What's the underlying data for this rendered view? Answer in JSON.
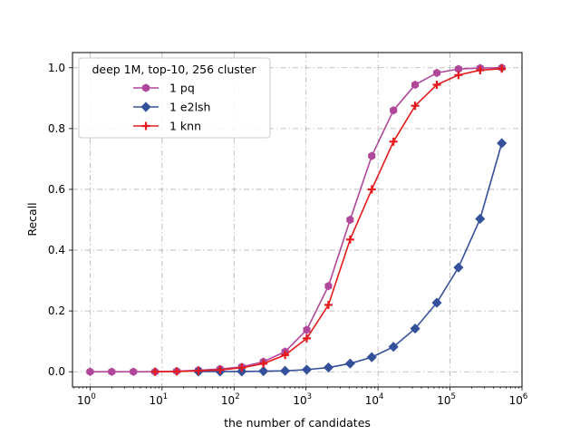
{
  "chart_data": {
    "type": "line",
    "xlabel": "the number of candidates",
    "ylabel": "Recall",
    "xscale": "log",
    "x_ticks": [
      {
        "value": 1,
        "base": "10",
        "exp": "0"
      },
      {
        "value": 10,
        "base": "10",
        "exp": "1"
      },
      {
        "value": 100,
        "base": "10",
        "exp": "2"
      },
      {
        "value": 1000,
        "base": "10",
        "exp": "3"
      },
      {
        "value": 10000,
        "base": "10",
        "exp": "4"
      },
      {
        "value": 100000,
        "base": "10",
        "exp": "5"
      },
      {
        "value": 1000000,
        "base": "10",
        "exp": "6"
      }
    ],
    "y_ticks": [
      0.0,
      0.2,
      0.4,
      0.6,
      0.8,
      1.0
    ],
    "y_tick_labels": [
      "0.0",
      "0.2",
      "0.4",
      "0.6",
      "0.8",
      "1.0"
    ],
    "xlim": [
      0.57,
      1000000
    ],
    "ylim": [
      -0.05,
      1.05
    ],
    "grid": true,
    "legend_title": "deep 1M, top-10, 256 cluster",
    "legend_position": "top-left",
    "series": [
      {
        "name": "1 pq",
        "color": "#b0479a",
        "marker": "hexagon",
        "x": [
          1,
          2,
          4,
          8,
          16,
          32,
          64,
          128,
          256,
          512,
          1024,
          2048,
          4096,
          8192,
          16384,
          32768,
          65536,
          131072,
          262144,
          524288
        ],
        "y": [
          0.0,
          0.0,
          0.0,
          0.0,
          0.002,
          0.005,
          0.009,
          0.016,
          0.033,
          0.066,
          0.138,
          0.282,
          0.5,
          0.71,
          0.86,
          0.944,
          0.983,
          0.996,
          0.999,
          1.0
        ]
      },
      {
        "name": "1 e2lsh",
        "color": "#34509a",
        "marker": "diamond",
        "x": [
          32,
          64,
          128,
          256,
          512,
          1024,
          2048,
          4096,
          8192,
          16384,
          32768,
          65536,
          131072,
          262144,
          524288
        ],
        "y": [
          0.001,
          0.001,
          0.001,
          0.002,
          0.003,
          0.007,
          0.014,
          0.027,
          0.048,
          0.082,
          0.142,
          0.227,
          0.343,
          0.503,
          0.752
        ]
      },
      {
        "name": "1 knn",
        "color": "#e41a1c",
        "marker": "plus",
        "x": [
          8,
          16,
          32,
          64,
          128,
          256,
          512,
          1024,
          2048,
          4096,
          8192,
          16384,
          32768,
          65536,
          131072,
          262144,
          524288
        ],
        "y": [
          0.0,
          0.001,
          0.003,
          0.006,
          0.013,
          0.027,
          0.055,
          0.11,
          0.22,
          0.435,
          0.6,
          0.757,
          0.875,
          0.944,
          0.976,
          0.992,
          0.997
        ]
      }
    ]
  }
}
